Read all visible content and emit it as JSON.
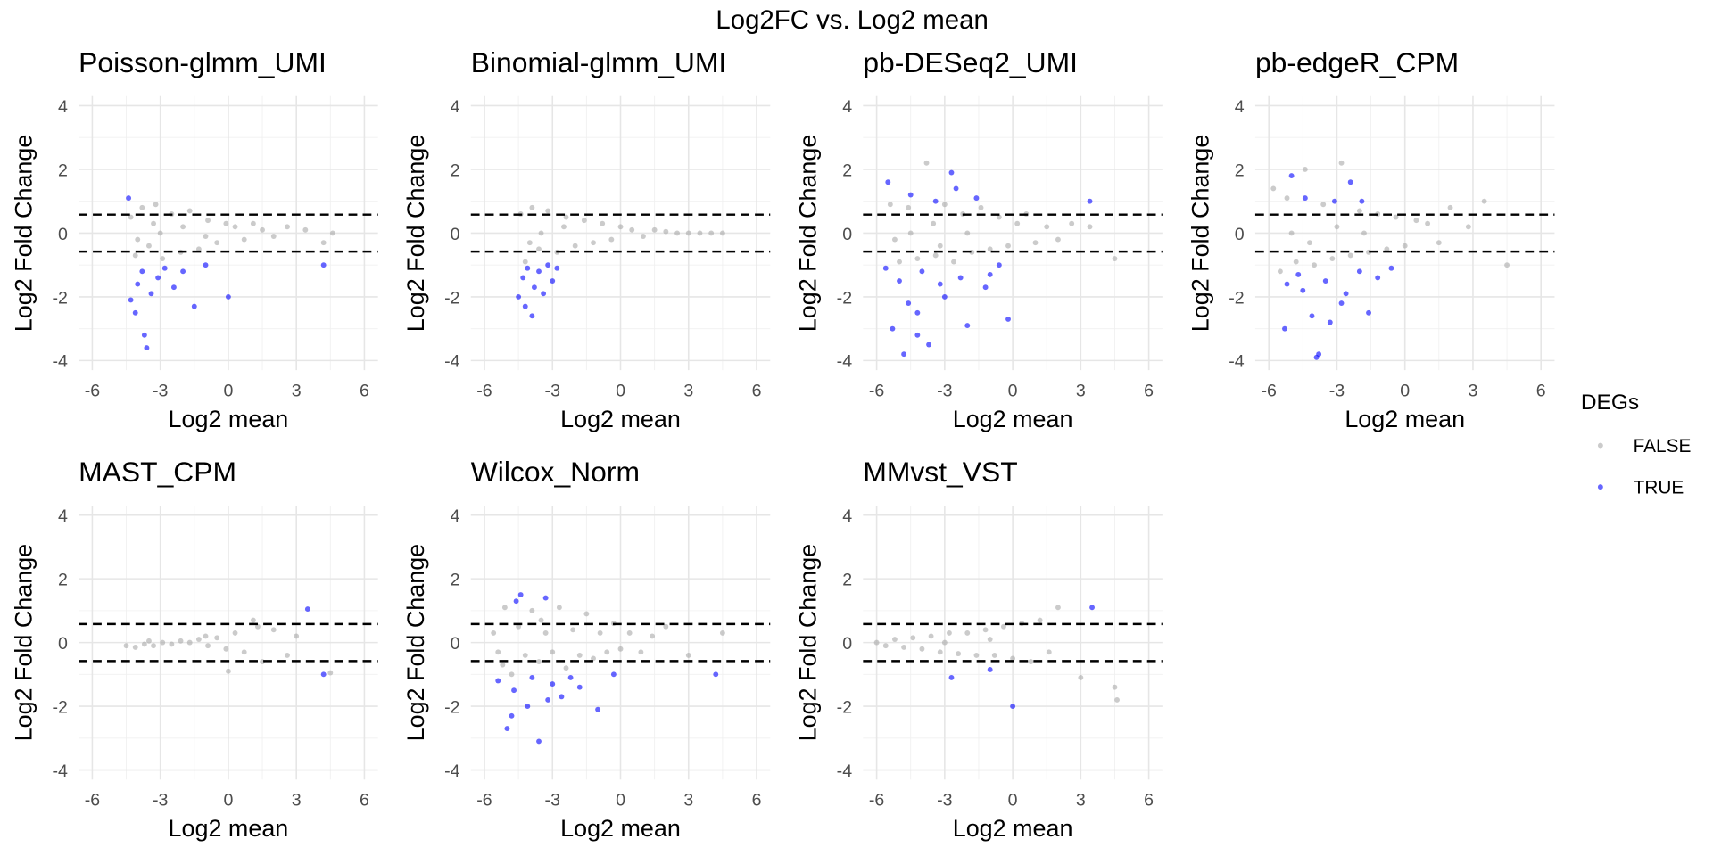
{
  "title": "Log2FC vs. Log2 mean",
  "legend_title": "DEGs",
  "chart_data": [
    {
      "type": "scatter",
      "title": "Poisson-glmm_UMI",
      "x_label": "Log2 mean",
      "y_label": "Log2 Fold Change",
      "xlim": [
        -6.6,
        6.6
      ],
      "ylim": [
        -4.3,
        4.3
      ],
      "xticks": [
        -6,
        -3,
        0,
        3,
        6
      ],
      "yticks": [
        -4,
        -2,
        0,
        2,
        4
      ],
      "xminor": [
        -4.5,
        -1.5,
        1.5,
        4.5
      ],
      "yminor": [
        -3,
        -1,
        1,
        3
      ],
      "grid": true,
      "hlines": [
        0.58,
        -0.58
      ],
      "series": [
        {
          "name": "FALSE",
          "color": "#a9a9a9",
          "x": [
            -4.3,
            -4.1,
            -3.8,
            -3.5,
            -3.2,
            -2.9,
            -2.5,
            -2.1,
            -1.7,
            -1.3,
            -0.9,
            -0.5,
            -0.1,
            0.3,
            0.7,
            1.1,
            1.5,
            2.0,
            2.6,
            3.4,
            4.2,
            4.6,
            -3.0,
            -2.0,
            -1.0,
            -4.0,
            -3.3
          ],
          "values": [
            0.5,
            -0.7,
            0.8,
            -0.4,
            0.9,
            -0.8,
            0.6,
            -0.6,
            0.7,
            -0.5,
            0.4,
            -0.3,
            0.3,
            0.2,
            -0.2,
            0.3,
            0.1,
            -0.1,
            0.2,
            0.1,
            -0.3,
            0.0,
            0.0,
            0.2,
            -0.1,
            -0.2,
            0.3
          ]
        },
        {
          "name": "TRUE",
          "color": "#0000ff",
          "x": [
            -4.4,
            -4.3,
            -4.0,
            -3.8,
            -3.6,
            -3.7,
            -3.4,
            -3.1,
            -2.8,
            -2.4,
            -2.0,
            -1.5,
            -1.0,
            0.0,
            4.2,
            -4.1
          ],
          "values": [
            1.1,
            -2.1,
            -1.6,
            -1.2,
            -3.6,
            -3.2,
            -1.9,
            -1.4,
            -1.1,
            -1.7,
            -1.2,
            -2.3,
            -1.0,
            -2.0,
            -1.0,
            -2.5
          ]
        }
      ]
    },
    {
      "type": "scatter",
      "title": "Binomial-glmm_UMI",
      "x_label": "Log2 mean",
      "y_label": "Log2 Fold Change",
      "xlim": [
        -6.6,
        6.6
      ],
      "ylim": [
        -4.3,
        4.3
      ],
      "xticks": [
        -6,
        -3,
        0,
        3,
        6
      ],
      "yticks": [
        -4,
        -2,
        0,
        2,
        4
      ],
      "xminor": [
        -4.5,
        -1.5,
        1.5,
        4.5
      ],
      "yminor": [
        -3,
        -1,
        1,
        3
      ],
      "grid": true,
      "hlines": [
        0.58,
        -0.58
      ],
      "series": [
        {
          "name": "FALSE",
          "color": "#a9a9a9",
          "x": [
            -4.4,
            -4.2,
            -3.9,
            -3.6,
            -3.2,
            -2.8,
            -2.4,
            -2.0,
            -1.6,
            -1.2,
            -0.8,
            -0.4,
            0.0,
            0.5,
            1.0,
            1.5,
            2.0,
            2.5,
            3.0,
            3.5,
            4.0,
            4.5,
            -3.5,
            -2.5,
            -4.0
          ],
          "values": [
            0.6,
            -0.9,
            0.8,
            -0.5,
            0.7,
            -0.6,
            0.5,
            -0.4,
            0.4,
            -0.3,
            0.3,
            -0.2,
            0.2,
            0.1,
            -0.1,
            0.1,
            0.05,
            0.0,
            0.0,
            0.0,
            0.0,
            0.0,
            0.0,
            0.2,
            -0.3
          ]
        },
        {
          "name": "TRUE",
          "color": "#0000ff",
          "x": [
            -4.5,
            -4.3,
            -4.1,
            -3.9,
            -3.8,
            -3.6,
            -3.4,
            -3.2,
            -3.0,
            -2.8,
            -4.2
          ],
          "values": [
            -2.0,
            -1.4,
            -1.1,
            -2.6,
            -1.7,
            -1.2,
            -1.9,
            -1.0,
            -1.5,
            -1.1,
            -2.3
          ]
        }
      ]
    },
    {
      "type": "scatter",
      "title": "pb-DESeq2_UMI",
      "x_label": "Log2 mean",
      "y_label": "Log2 Fold Change",
      "xlim": [
        -6.6,
        6.6
      ],
      "ylim": [
        -4.3,
        4.3
      ],
      "xticks": [
        -6,
        -3,
        0,
        3,
        6
      ],
      "yticks": [
        -4,
        -2,
        0,
        2,
        4
      ],
      "xminor": [
        -4.5,
        -1.5,
        1.5,
        4.5
      ],
      "yminor": [
        -3,
        -1,
        1,
        3
      ],
      "grid": true,
      "hlines": [
        0.58,
        -0.58
      ],
      "series": [
        {
          "name": "FALSE",
          "color": "#a9a9a9",
          "x": [
            -5.4,
            -5.0,
            -4.6,
            -4.2,
            -3.8,
            -3.4,
            -3.0,
            -2.6,
            -2.2,
            -1.8,
            -1.4,
            -1.0,
            -0.6,
            -0.2,
            0.2,
            0.6,
            1.0,
            1.5,
            2.0,
            2.6,
            3.4,
            4.5,
            -4.5,
            -3.5,
            -2.0,
            -5.2,
            -3.2
          ],
          "values": [
            0.9,
            -0.9,
            0.8,
            -0.8,
            2.2,
            -0.7,
            0.9,
            -0.9,
            0.6,
            -0.6,
            0.8,
            -0.5,
            0.5,
            -0.4,
            0.3,
            0.6,
            -0.3,
            0.2,
            -0.2,
            0.3,
            0.2,
            -0.8,
            0.0,
            0.3,
            0.0,
            -0.2,
            -0.4
          ]
        },
        {
          "name": "TRUE",
          "color": "#0000ff",
          "x": [
            -5.5,
            -5.3,
            -5.0,
            -4.8,
            -4.5,
            -4.2,
            -4.0,
            -3.7,
            -3.4,
            -3.0,
            -2.7,
            -2.3,
            -2.0,
            -1.6,
            -1.2,
            -0.6,
            -0.2,
            3.4,
            -5.6,
            -4.6,
            -3.2,
            -2.5,
            -1.0,
            -4.2
          ],
          "values": [
            1.6,
            -3.0,
            -1.5,
            -3.8,
            1.2,
            -2.5,
            -1.2,
            -3.5,
            1.0,
            -2.0,
            1.9,
            -1.4,
            -2.9,
            1.1,
            -1.7,
            -1.0,
            -2.7,
            1.0,
            -1.1,
            -2.2,
            -1.6,
            1.4,
            -1.3,
            -3.2
          ]
        }
      ]
    },
    {
      "type": "scatter",
      "title": "pb-edgeR_CPM",
      "x_label": "Log2 mean",
      "y_label": "Log2 Fold Change",
      "xlim": [
        -6.6,
        6.6
      ],
      "ylim": [
        -4.3,
        4.3
      ],
      "xticks": [
        -6,
        -3,
        0,
        3,
        6
      ],
      "yticks": [
        -4,
        -2,
        0,
        2,
        4
      ],
      "xminor": [
        -4.5,
        -1.5,
        1.5,
        4.5
      ],
      "yminor": [
        -3,
        -1,
        1,
        3
      ],
      "grid": true,
      "hlines": [
        0.58,
        -0.58
      ],
      "series": [
        {
          "name": "FALSE",
          "color": "#a9a9a9",
          "x": [
            -5.8,
            -5.5,
            -5.2,
            -4.8,
            -4.4,
            -4.0,
            -3.6,
            -3.2,
            -2.8,
            -2.4,
            -2.0,
            -1.6,
            -1.2,
            -0.8,
            -0.4,
            0.0,
            0.5,
            1.0,
            1.5,
            2.0,
            2.8,
            3.5,
            4.5,
            -5.0,
            -4.2,
            -3.0,
            -1.8
          ],
          "values": [
            1.4,
            -1.2,
            1.1,
            -0.9,
            2.0,
            -1.0,
            0.9,
            -0.8,
            2.2,
            -0.7,
            0.7,
            -0.6,
            0.6,
            -0.5,
            0.5,
            -0.4,
            0.4,
            0.3,
            -0.3,
            0.8,
            0.2,
            1.0,
            -1.0,
            0.0,
            -0.3,
            0.2,
            0.0
          ]
        },
        {
          "name": "TRUE",
          "color": "#0000ff",
          "x": [
            -5.3,
            -5.0,
            -4.7,
            -4.4,
            -4.1,
            -3.8,
            -3.5,
            -3.1,
            -2.8,
            -2.4,
            -2.0,
            -1.6,
            -1.2,
            -0.6,
            -5.2,
            -3.9,
            -2.6,
            -4.5,
            -3.3,
            -1.9
          ],
          "values": [
            -3.0,
            1.8,
            -1.3,
            1.1,
            -2.6,
            -3.8,
            -1.5,
            1.0,
            -2.2,
            1.6,
            -1.2,
            -2.5,
            -1.4,
            -1.1,
            -1.6,
            -3.9,
            -1.9,
            -1.8,
            -2.8,
            1.0
          ]
        }
      ]
    },
    {
      "type": "scatter",
      "title": "MAST_CPM",
      "x_label": "Log2 mean",
      "y_label": "Log2 Fold Change",
      "xlim": [
        -6.6,
        6.6
      ],
      "ylim": [
        -4.3,
        4.3
      ],
      "xticks": [
        -6,
        -3,
        0,
        3,
        6
      ],
      "yticks": [
        -4,
        -2,
        0,
        2,
        4
      ],
      "xminor": [
        -4.5,
        -1.5,
        1.5,
        4.5
      ],
      "yminor": [
        -3,
        -1,
        1,
        3
      ],
      "grid": true,
      "hlines": [
        0.58,
        -0.58
      ],
      "series": [
        {
          "name": "FALSE",
          "color": "#a9a9a9",
          "x": [
            -4.5,
            -4.1,
            -3.7,
            -3.3,
            -2.9,
            -2.5,
            -2.1,
            -1.7,
            -1.3,
            -0.9,
            -0.5,
            -0.1,
            0.3,
            0.7,
            1.1,
            1.5,
            2.0,
            2.6,
            3.0,
            4.5,
            -3.5,
            -1.0,
            0.0,
            1.3
          ],
          "values": [
            -0.1,
            -0.15,
            -0.05,
            -0.1,
            0.0,
            -0.05,
            0.05,
            0.0,
            0.1,
            -0.1,
            0.15,
            -0.2,
            0.3,
            -0.3,
            0.7,
            -0.6,
            0.4,
            -0.4,
            0.2,
            -0.95,
            0.05,
            0.2,
            -0.9,
            0.5
          ]
        },
        {
          "name": "TRUE",
          "color": "#0000ff",
          "x": [
            3.5,
            4.2
          ],
          "values": [
            1.05,
            -1.0
          ]
        }
      ]
    },
    {
      "type": "scatter",
      "title": "Wilcox_Norm",
      "x_label": "Log2 mean",
      "y_label": "Log2 Fold Change",
      "xlim": [
        -6.6,
        6.6
      ],
      "ylim": [
        -4.3,
        4.3
      ],
      "xticks": [
        -6,
        -3,
        0,
        3,
        6
      ],
      "yticks": [
        -4,
        -2,
        0,
        2,
        4
      ],
      "xminor": [
        -4.5,
        -1.5,
        1.5,
        4.5
      ],
      "yminor": [
        -3,
        -1,
        1,
        3
      ],
      "grid": true,
      "hlines": [
        0.58,
        -0.58
      ],
      "series": [
        {
          "name": "FALSE",
          "color": "#a9a9a9",
          "x": [
            -5.6,
            -5.4,
            -5.1,
            -4.8,
            -4.5,
            -4.2,
            -3.9,
            -3.6,
            -3.3,
            -3.0,
            -2.7,
            -2.4,
            -2.1,
            -1.8,
            -1.5,
            -1.2,
            -0.9,
            -0.6,
            -0.3,
            0.0,
            0.4,
            0.9,
            1.4,
            2.0,
            3.0,
            4.5,
            -5.2,
            -3.5
          ],
          "values": [
            0.3,
            -0.3,
            1.1,
            -1.0,
            0.5,
            -0.4,
            1.0,
            -0.6,
            0.3,
            -0.3,
            1.1,
            -0.8,
            0.4,
            -0.4,
            0.9,
            -0.5,
            0.3,
            -0.3,
            0.6,
            -0.2,
            0.3,
            -0.3,
            0.2,
            0.5,
            -0.4,
            0.3,
            -0.7,
            0.7
          ]
        },
        {
          "name": "TRUE",
          "color": "#0000ff",
          "x": [
            -5.4,
            -5.0,
            -4.7,
            -4.4,
            -4.1,
            -3.9,
            -3.6,
            -3.3,
            -3.0,
            -2.6,
            -2.2,
            -1.8,
            -1.0,
            -0.3,
            4.2,
            -4.8,
            -3.2,
            -4.6
          ],
          "values": [
            -1.2,
            -2.7,
            -1.5,
            1.5,
            -2.0,
            -1.1,
            -3.1,
            1.4,
            -1.3,
            -1.7,
            -1.1,
            -1.4,
            -2.1,
            -1.0,
            -1.0,
            -2.3,
            -1.8,
            1.3
          ]
        }
      ]
    },
    {
      "type": "scatter",
      "title": "MMvst_VST",
      "x_label": "Log2 mean",
      "y_label": "Log2 Fold Change",
      "xlim": [
        -6.6,
        6.6
      ],
      "ylim": [
        -4.3,
        4.3
      ],
      "xticks": [
        -6,
        -3,
        0,
        3,
        6
      ],
      "yticks": [
        -4,
        -2,
        0,
        2,
        4
      ],
      "xminor": [
        -4.5,
        -1.5,
        1.5,
        4.5
      ],
      "yminor": [
        -3,
        -1,
        1,
        3
      ],
      "grid": true,
      "hlines": [
        0.58,
        -0.58
      ],
      "series": [
        {
          "name": "FALSE",
          "color": "#a9a9a9",
          "x": [
            -6.0,
            -5.6,
            -5.2,
            -4.8,
            -4.4,
            -4.0,
            -3.6,
            -3.2,
            -2.8,
            -2.4,
            -2.0,
            -1.6,
            -1.2,
            -0.8,
            -0.4,
            0.0,
            0.4,
            0.8,
            1.2,
            1.6,
            2.0,
            3.0,
            4.5,
            4.6,
            -3.0,
            -1.0
          ],
          "values": [
            0.0,
            -0.1,
            0.1,
            -0.15,
            0.15,
            -0.2,
            0.2,
            -0.3,
            0.3,
            -0.35,
            0.3,
            -0.4,
            0.4,
            -0.4,
            0.5,
            -0.5,
            0.6,
            -0.6,
            0.7,
            -0.3,
            1.1,
            -1.1,
            -1.4,
            -1.8,
            0.0,
            0.1
          ]
        },
        {
          "name": "TRUE",
          "color": "#0000ff",
          "x": [
            3.5,
            -2.7,
            0.0,
            -1.0
          ],
          "values": [
            1.1,
            -1.1,
            -2.0,
            -0.85
          ]
        }
      ]
    }
  ]
}
